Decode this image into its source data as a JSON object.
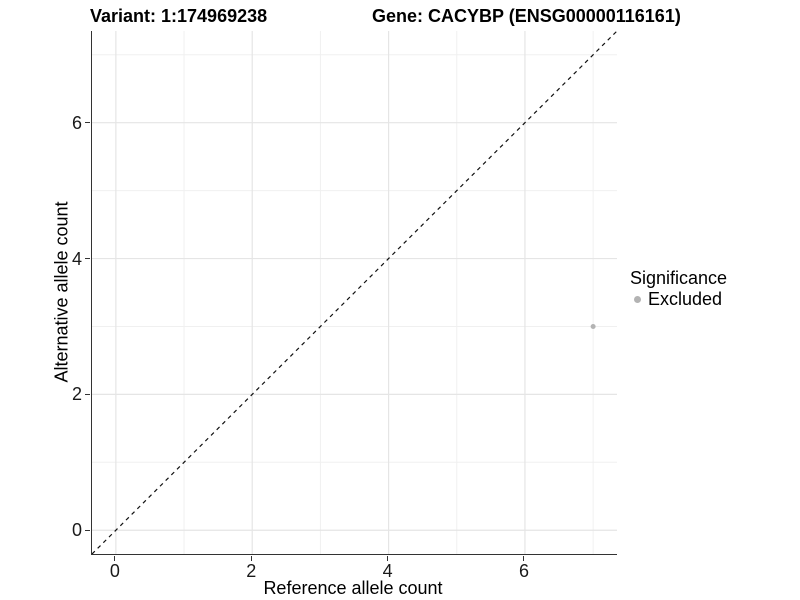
{
  "titles": {
    "variant": "Variant: 1:174969238",
    "gene": "Gene: CACYBP (ENSG00000116161)"
  },
  "axes": {
    "x": {
      "label": "Reference allele count",
      "tick_labels": [
        "0",
        "2",
        "4",
        "6"
      ]
    },
    "y": {
      "label": "Alternative allele count",
      "tick_labels": [
        "0",
        "2",
        "4",
        "6"
      ]
    }
  },
  "legend": {
    "title": "Significance",
    "items": [
      {
        "label": "Excluded",
        "color": "#b3b3b3"
      }
    ]
  },
  "colors": {
    "background": "#ffffff",
    "axis_line": "#333333",
    "grid_major": "#e5e5e5",
    "grid_minor": "#f0f0f0",
    "point": "#b3b3b3",
    "reference_line": "#111111",
    "text": "#000000"
  },
  "chart_data": {
    "type": "scatter",
    "title": "Variant: 1:174969238 — Gene: CACYBP (ENSG00000116161)",
    "xlabel": "Reference allele count",
    "ylabel": "Alternative allele count",
    "xlim": [
      -0.35,
      7.35
    ],
    "ylim": [
      -0.35,
      7.35
    ],
    "x_major_ticks": [
      0,
      2,
      4,
      6
    ],
    "y_major_ticks": [
      0,
      2,
      4,
      6
    ],
    "x_minor_gridlines": [
      1,
      3,
      5,
      7
    ],
    "y_minor_gridlines": [
      1,
      3,
      5,
      7
    ],
    "grid": "major+minor",
    "legend_position": "right",
    "series": [
      {
        "name": "Excluded",
        "color": "#b3b3b3",
        "point_radius": 2.5,
        "points": [
          [
            7,
            3
          ]
        ]
      }
    ],
    "reference_line": {
      "kind": "identity",
      "slope": 1,
      "intercept": 0,
      "style": "dashed",
      "color": "#111111"
    }
  }
}
